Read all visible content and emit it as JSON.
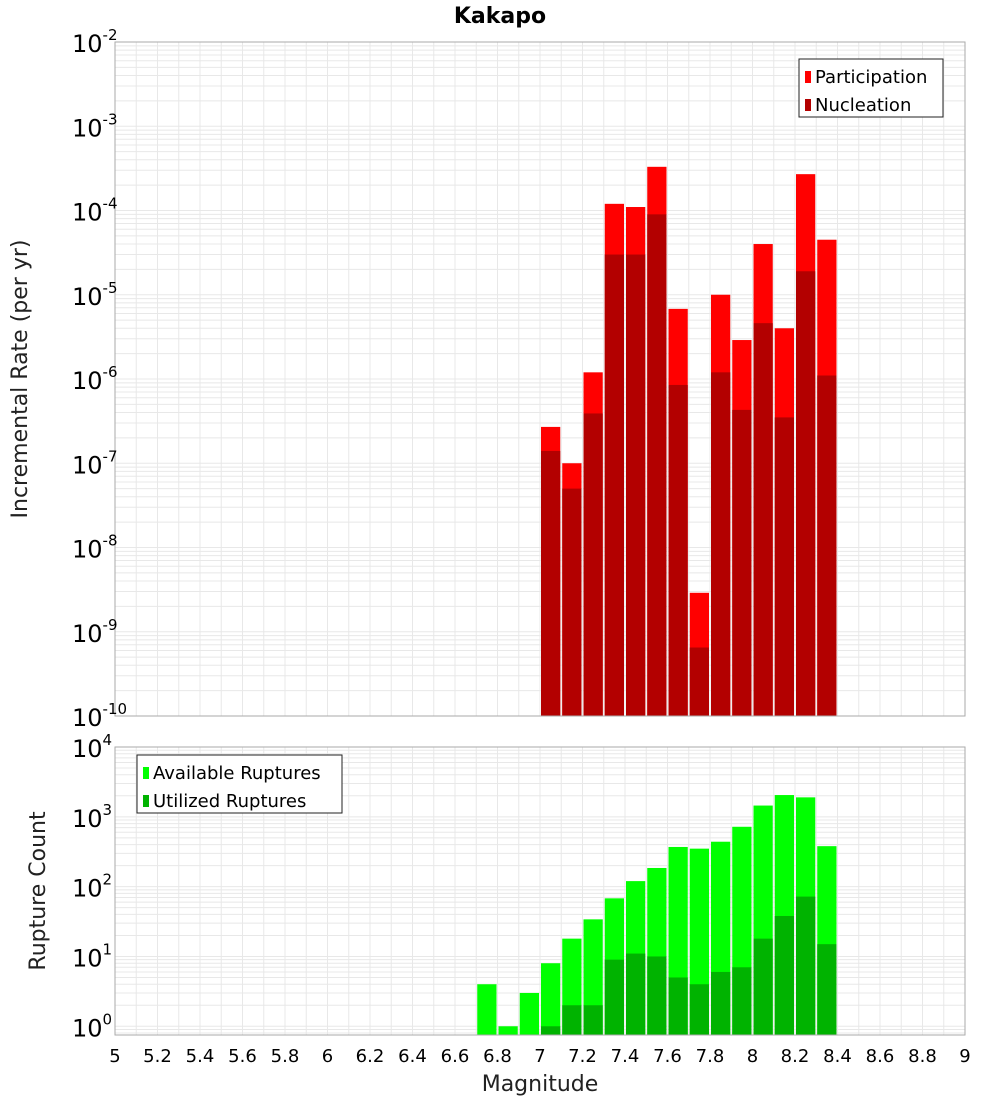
{
  "title": "Kakapo",
  "colors": {
    "participation": "#ff0000",
    "nucleation": "#b30000",
    "available": "#00ff00",
    "utilized": "#00b300",
    "grid": "#e8e8e8",
    "frame": "#aaaaaa"
  },
  "chart_data": [
    {
      "type": "bar",
      "ylabel": "Incremental Rate (per yr)",
      "xlabel": "",
      "yscale": "log",
      "ylim": [
        1e-10,
        0.01
      ],
      "xlim": [
        5,
        9
      ],
      "grid": true,
      "legend_position": "top-right",
      "y_ticks": [
        {
          "base": "10",
          "exp": "-2"
        },
        {
          "base": "10",
          "exp": "-3"
        },
        {
          "base": "10",
          "exp": "-4"
        },
        {
          "base": "10",
          "exp": "-5"
        },
        {
          "base": "10",
          "exp": "-6"
        },
        {
          "base": "10",
          "exp": "-7"
        },
        {
          "base": "10",
          "exp": "-8"
        },
        {
          "base": "10",
          "exp": "-9"
        },
        {
          "base": "10",
          "exp": "-10"
        }
      ],
      "x": [
        7.05,
        7.15,
        7.25,
        7.35,
        7.45,
        7.55,
        7.65,
        7.75,
        7.85,
        7.95,
        8.05,
        8.15,
        8.25,
        8.35
      ],
      "series": [
        {
          "name": "Participation",
          "color": "#ff0000",
          "values": [
            2.7e-07,
            1e-07,
            1.2e-06,
            0.00012,
            0.00011,
            0.00033,
            6.8e-06,
            2.9e-09,
            1e-05,
            2.9e-06,
            4e-05,
            4e-06,
            0.00027,
            4.5e-05
          ]
        },
        {
          "name": "Nucleation",
          "color": "#b30000",
          "values": [
            1.4e-07,
            5e-08,
            3.9e-07,
            3e-05,
            3e-05,
            9e-05,
            8.5e-07,
            6.5e-10,
            1.2e-06,
            4.3e-07,
            4.6e-06,
            3.5e-07,
            1.9e-05,
            1.1e-06
          ]
        }
      ]
    },
    {
      "type": "bar",
      "ylabel": "Rupture Count",
      "xlabel": "Magnitude",
      "yscale": "log",
      "ylim": [
        0.75,
        10000
      ],
      "xlim": [
        5,
        9
      ],
      "grid": true,
      "legend_position": "top-left",
      "y_ticks": [
        {
          "base": "10",
          "exp": "4",
          "v": 10000
        },
        {
          "base": "10",
          "exp": "3",
          "v": 1000
        },
        {
          "base": "10",
          "exp": "2",
          "v": 100
        },
        {
          "base": "10",
          "exp": "1",
          "v": 10
        },
        {
          "base": "10",
          "exp": "0",
          "v": 1
        }
      ],
      "x_ticks": [
        "5",
        "5.2",
        "5.4",
        "5.6",
        "5.8",
        "6",
        "6.2",
        "6.4",
        "6.6",
        "6.8",
        "7",
        "7.2",
        "7.4",
        "7.6",
        "7.8",
        "8",
        "8.2",
        "8.4",
        "8.6",
        "8.8",
        "9"
      ],
      "x": [
        6.75,
        6.85,
        6.95,
        7.05,
        7.15,
        7.25,
        7.35,
        7.45,
        7.55,
        7.65,
        7.75,
        7.85,
        7.95,
        8.05,
        8.15,
        8.25,
        8.35
      ],
      "series": [
        {
          "name": "Available Ruptures",
          "color": "#00ff00",
          "values": [
            4,
            1,
            3,
            8,
            18,
            34,
            68,
            120,
            185,
            370,
            350,
            440,
            720,
            1450,
            2050,
            1900,
            380
          ]
        },
        {
          "name": "Utilized Ruptures",
          "color": "#00b300",
          "values": [
            0,
            0,
            0,
            1,
            2,
            2,
            9,
            11,
            10,
            5,
            4,
            6,
            7,
            18,
            38,
            72,
            15
          ]
        }
      ]
    }
  ]
}
